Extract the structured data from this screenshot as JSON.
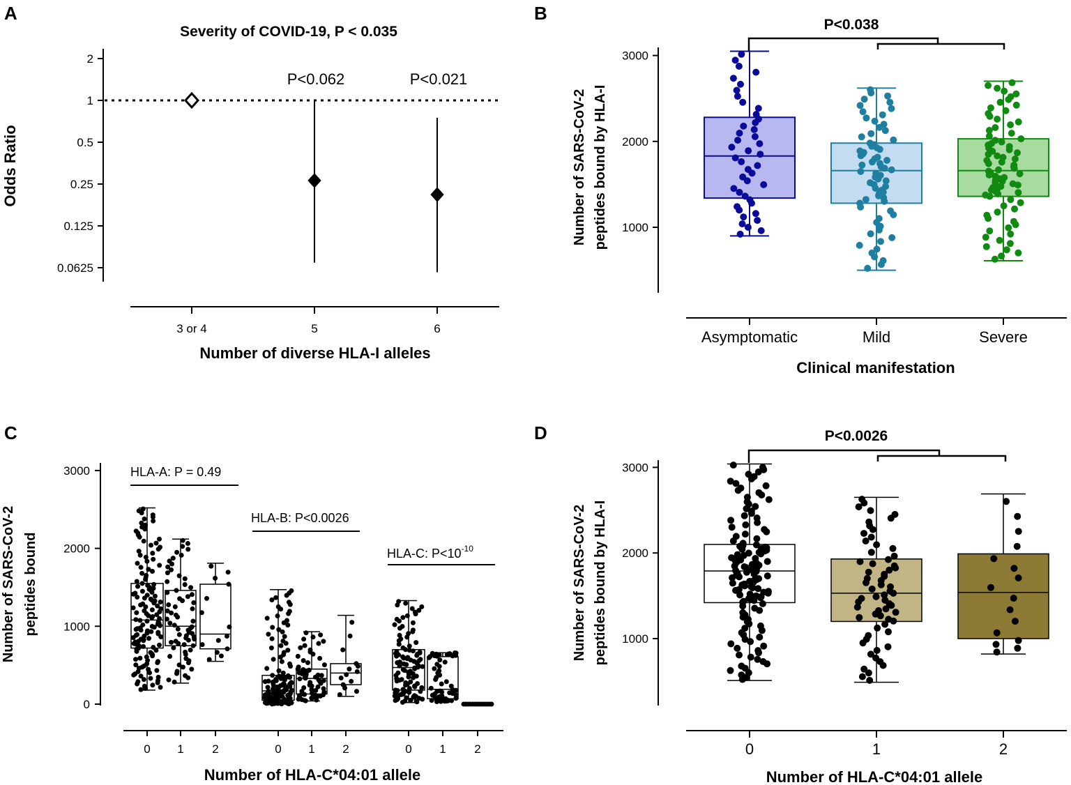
{
  "colors": {
    "asym_fill": "#b8b8f0",
    "asym_stroke": "#0b0b9a",
    "mild_fill": "#c4dcf2",
    "mild_stroke": "#1e7fa0",
    "severe_fill": "#a8dba0",
    "severe_stroke": "#118a11",
    "d_fill_1": "#c2b585",
    "d_fill_2": "#8c7a35",
    "ink": "#000000"
  },
  "chart_data": [
    {
      "id": "A",
      "type": "scatter",
      "panel_label": "A",
      "title": "Severity of COVID-19, P < 0.035",
      "xlabel": "Number of diverse HLA-I alleles",
      "ylabel": "Odds Ratio",
      "yscale": "log2",
      "ylim": [
        0.0625,
        2
      ],
      "yticks": [
        2,
        1,
        0.5,
        0.25,
        0.125,
        0.0625
      ],
      "ytick_labels": [
        "2",
        "1",
        "0.5",
        "0.25",
        "0.125",
        "0.0625"
      ],
      "categories": [
        "3 or 4",
        "5",
        "6"
      ],
      "reference_line": 1,
      "points": [
        {
          "category": "3 or 4",
          "or": 1,
          "ci_low": 1,
          "ci_high": 1,
          "p_label": "",
          "reference": true
        },
        {
          "category": "5",
          "or": 0.265,
          "ci_low": 0.068,
          "ci_high": 1.0,
          "p_label": "P<0.062",
          "reference": false
        },
        {
          "category": "6",
          "or": 0.21,
          "ci_low": 0.058,
          "ci_high": 0.75,
          "p_label": "P<0.021",
          "reference": false
        }
      ]
    },
    {
      "id": "B",
      "type": "box",
      "panel_label": "B",
      "xlabel": "Clinical manifestation",
      "ylabel": [
        "Number of SARS-CoV-2",
        "peptides bound by HLA-I"
      ],
      "ylim": [
        250,
        3100
      ],
      "yticks": [
        1000,
        2000,
        3000
      ],
      "categories": [
        "Asymptomatic",
        "Mild",
        "Severe"
      ],
      "boxes": [
        {
          "min": 900,
          "q1": 1340,
          "median": 1830,
          "q3": 2280,
          "max": 3050,
          "n": 44,
          "color_key": "asym"
        },
        {
          "min": 500,
          "q1": 1280,
          "median": 1660,
          "q3": 1980,
          "max": 2620,
          "n": 70,
          "color_key": "mild"
        },
        {
          "min": 610,
          "q1": 1360,
          "median": 1660,
          "q3": 2030,
          "max": 2700,
          "n": 82,
          "color_key": "severe"
        }
      ],
      "bracket_label": "P<0.038"
    },
    {
      "id": "C",
      "type": "box",
      "panel_label": "C",
      "xlabel": "Number of HLA-C*04:01 allele",
      "ylabel": [
        "Number of SARS-CoV-2",
        "peptides  bound"
      ],
      "ylim": [
        0,
        3000
      ],
      "yticks": [
        0,
        1000,
        2000,
        3000
      ],
      "groups": [
        {
          "label": "HLA-A: P = 0.49",
          "label_main": "HLA-A: P = 0.49",
          "label_exp": "",
          "boxes": [
            {
              "category": "0",
              "min": 180,
              "q1": 720,
              "median": 1080,
              "q3": 1550,
              "max": 2520,
              "n": 150
            },
            {
              "category": "1",
              "min": 270,
              "q1": 750,
              "median": 1000,
              "q3": 1460,
              "max": 2120,
              "n": 70
            },
            {
              "category": "2",
              "min": 550,
              "q1": 710,
              "median": 900,
              "q3": 1540,
              "max": 1810,
              "n": 14
            }
          ]
        },
        {
          "label": "HLA-B: P<0.0026",
          "label_main": "HLA-B: P<0.0026",
          "label_exp": "",
          "boxes": [
            {
              "category": "0",
              "min": 0,
              "q1": 50,
              "median": 170,
              "q3": 370,
              "max": 1470,
              "n": 150
            },
            {
              "category": "1",
              "min": 40,
              "q1": 130,
              "median": 330,
              "q3": 450,
              "max": 930,
              "n": 70
            },
            {
              "category": "2",
              "min": 100,
              "q1": 250,
              "median": 400,
              "q3": 520,
              "max": 1140,
              "n": 14
            }
          ]
        },
        {
          "label": "HLA-C: P<10-10",
          "label_main": "HLA-C: P<10",
          "label_exp": "-10",
          "boxes": [
            {
              "category": "0",
              "min": 20,
              "q1": 180,
              "median": 470,
              "q3": 700,
              "max": 1330,
              "n": 110
            },
            {
              "category": "1",
              "min": 30,
              "q1": 70,
              "median": 190,
              "q3": 610,
              "max": 660,
              "n": 60
            },
            {
              "category": "2",
              "min": 0,
              "q1": 0,
              "median": 0,
              "q3": 0,
              "max": 0,
              "n": 14
            }
          ]
        }
      ]
    },
    {
      "id": "D",
      "type": "box",
      "panel_label": "D",
      "xlabel": "Number of HLA-C*04:01 allele",
      "ylabel": [
        "Number of SARS-CoV-2",
        "peptides bound by HLA-I"
      ],
      "ylim": [
        250,
        3100
      ],
      "yticks": [
        1000,
        2000,
        3000
      ],
      "categories": [
        "0",
        "1",
        "2"
      ],
      "boxes": [
        {
          "min": 510,
          "q1": 1420,
          "median": 1790,
          "q3": 2100,
          "max": 3040,
          "n": 140,
          "color_key": "white"
        },
        {
          "min": 490,
          "q1": 1200,
          "median": 1530,
          "q3": 1930,
          "max": 2650,
          "n": 65,
          "color_key": "d1"
        },
        {
          "min": 820,
          "q1": 1000,
          "median": 1540,
          "q3": 1990,
          "max": 2690,
          "n": 16,
          "color_key": "d2"
        }
      ],
      "bracket_label": "P<0.0026"
    }
  ]
}
